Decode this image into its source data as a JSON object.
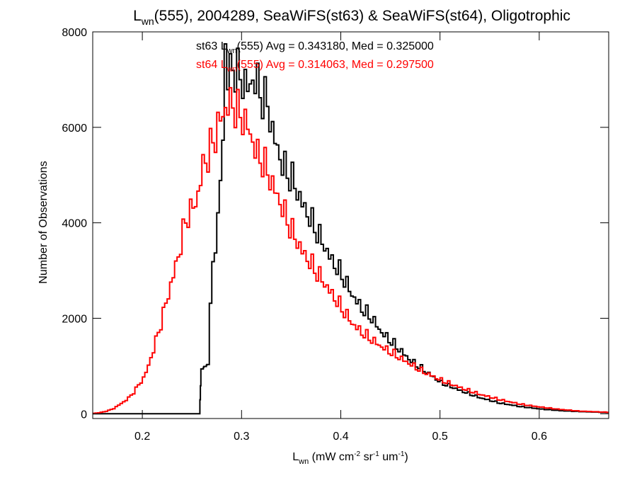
{
  "chart_data": {
    "type": "line",
    "title": {
      "main": "L",
      "sub": "wn",
      "rest": "(555), 2004289, SeaWiFS(st63) & SeaWiFS(st64), Oligotrophic"
    },
    "xlabel": {
      "main": "L",
      "sub": "wn",
      "u1": " (mW cm",
      "s1": "-2",
      "u2": " sr",
      "s2": "-1",
      "u3": " um",
      "s3": "-1",
      "u4": ")"
    },
    "ylabel": "Number of Observations",
    "xlim": [
      0.15,
      0.67
    ],
    "ylim": [
      -100,
      8000
    ],
    "x_ticks": [
      0.2,
      0.3,
      0.4,
      0.5,
      0.6
    ],
    "x_tick_labels": [
      "0.2",
      "0.3",
      "0.4",
      "0.5",
      "0.6"
    ],
    "y_ticks": [
      0,
      2000,
      4000,
      6000,
      8000
    ],
    "y_tick_labels": [
      "0",
      "2000",
      "4000",
      "6000",
      "8000"
    ],
    "grid": false,
    "annotations": [
      {
        "series": "st63",
        "pre": "st63 L",
        "sub": "wn",
        "post": "(555) Avg = 0.343180, Med = 0.325000",
        "color": "#000000"
      },
      {
        "series": "st64",
        "pre": "st64 L",
        "sub": "wn",
        "post": "(555) Avg = 0.314063, Med = 0.297500",
        "color": "#ff0000"
      }
    ],
    "series": [
      {
        "key": "st63",
        "color": "#000000",
        "x": [
          0.15,
          0.175,
          0.2,
          0.225,
          0.25,
          0.2575,
          0.258,
          0.2585,
          0.259,
          0.262,
          0.265,
          0.27,
          0.275,
          0.28,
          0.2825,
          0.285,
          0.29,
          0.295,
          0.3,
          0.305,
          0.31,
          0.315,
          0.32,
          0.325,
          0.33,
          0.34,
          0.35,
          0.36,
          0.37,
          0.38,
          0.39,
          0.4,
          0.41,
          0.42,
          0.43,
          0.44,
          0.45,
          0.46,
          0.47,
          0.48,
          0.49,
          0.5,
          0.52,
          0.54,
          0.56,
          0.58,
          0.6,
          0.62,
          0.64,
          0.67
        ],
        "y": [
          0,
          0,
          0,
          0,
          0,
          0,
          300,
          600,
          900,
          1000,
          1100,
          3200,
          4000,
          5800,
          7700,
          7000,
          7300,
          7100,
          7000,
          6800,
          7000,
          6900,
          6600,
          6500,
          5900,
          5200,
          4900,
          4400,
          4000,
          3600,
          3200,
          2900,
          2500,
          2200,
          2000,
          1700,
          1500,
          1300,
          1100,
          950,
          800,
          650,
          480,
          330,
          220,
          150,
          100,
          65,
          45,
          25
        ]
      },
      {
        "key": "st64",
        "color": "#ff0000",
        "x": [
          0.15,
          0.155,
          0.16,
          0.165,
          0.17,
          0.175,
          0.18,
          0.185,
          0.19,
          0.195,
          0.2,
          0.205,
          0.21,
          0.215,
          0.22,
          0.225,
          0.23,
          0.235,
          0.24,
          0.245,
          0.25,
          0.255,
          0.26,
          0.265,
          0.27,
          0.275,
          0.28,
          0.285,
          0.29,
          0.295,
          0.3,
          0.305,
          0.31,
          0.315,
          0.32,
          0.33,
          0.34,
          0.35,
          0.36,
          0.37,
          0.38,
          0.39,
          0.4,
          0.41,
          0.42,
          0.44,
          0.46,
          0.48,
          0.5,
          0.52,
          0.54,
          0.56,
          0.58,
          0.6,
          0.62,
          0.64,
          0.67
        ],
        "y": [
          10,
          20,
          40,
          70,
          110,
          180,
          250,
          330,
          450,
          600,
          750,
          1000,
          1350,
          1700,
          2100,
          2500,
          2900,
          3300,
          3800,
          4200,
          4300,
          4600,
          5200,
          5400,
          5700,
          6000,
          6300,
          6450,
          6500,
          6300,
          6200,
          6000,
          5700,
          5400,
          5300,
          4800,
          4300,
          3800,
          3400,
          3100,
          2800,
          2500,
          2200,
          1900,
          1700,
          1400,
          1150,
          900,
          700,
          540,
          400,
          290,
          200,
          140,
          90,
          55,
          30
        ]
      }
    ]
  }
}
